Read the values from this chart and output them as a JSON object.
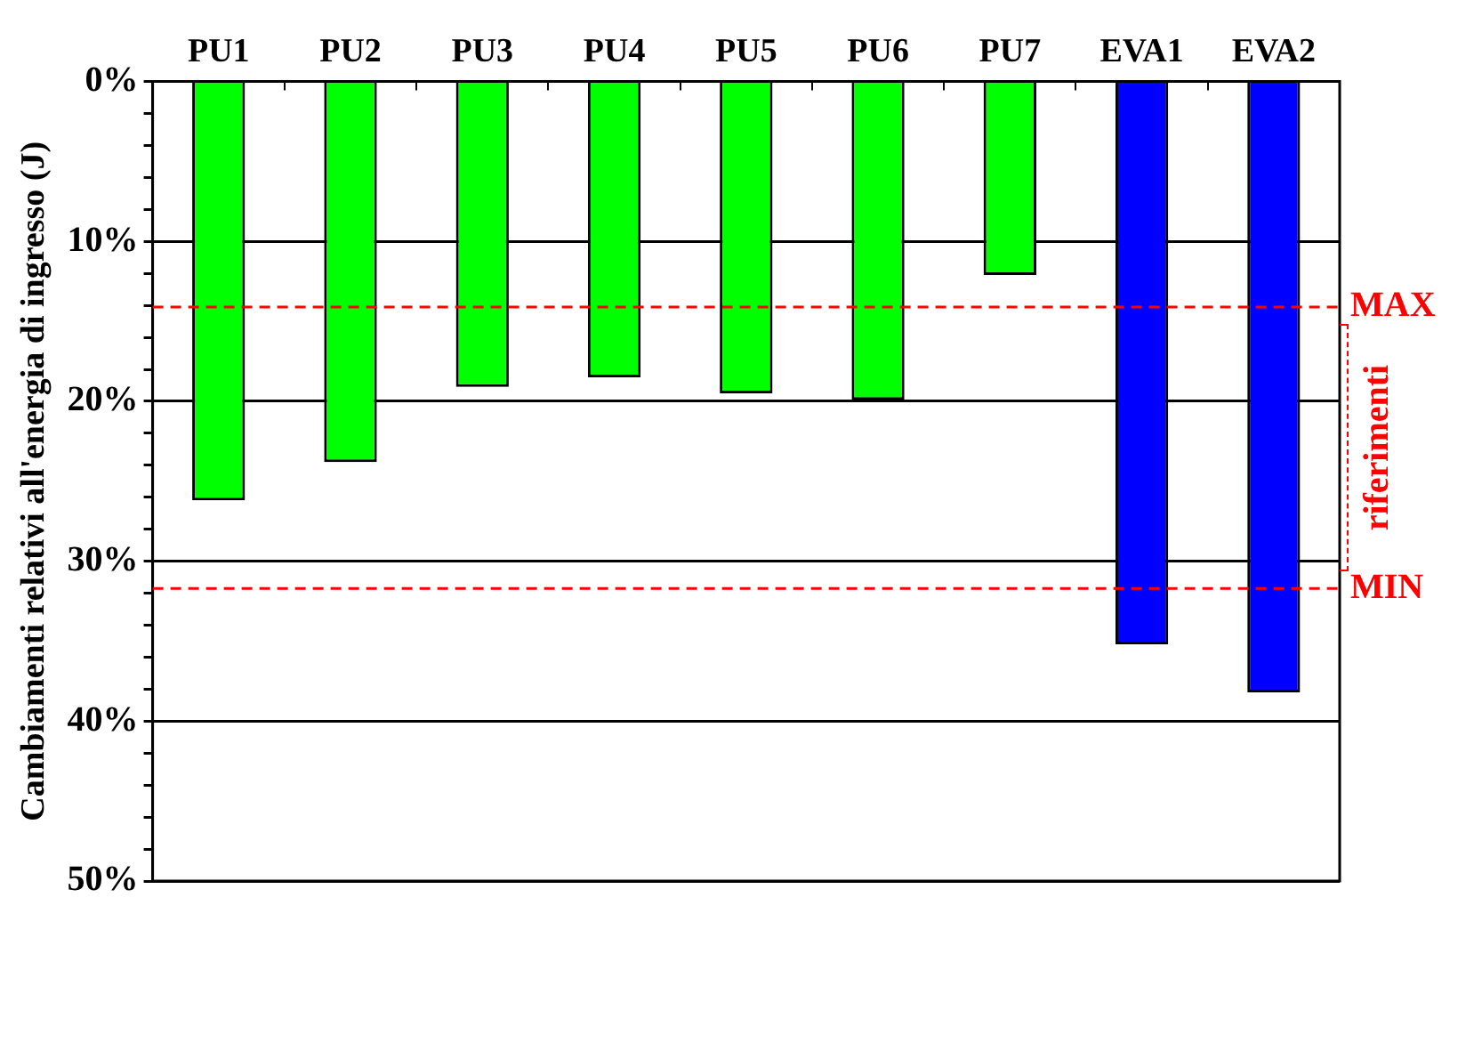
{
  "chart_data": {
    "type": "bar",
    "ylabel": "Cambiamenti relativi all'energia di ingresso (J)",
    "categories": [
      "PU1",
      "PU2",
      "PU3",
      "PU4",
      "PU5",
      "PU6",
      "PU7",
      "EVA1",
      "EVA2"
    ],
    "values": [
      26.2,
      23.8,
      19.1,
      18.5,
      19.5,
      19.9,
      12.1,
      35.2,
      38.2
    ],
    "colors": [
      "#00ff00",
      "#00ff00",
      "#00ff00",
      "#00ff00",
      "#00ff00",
      "#00ff00",
      "#00ff00",
      "#0000ff",
      "#0000ff"
    ],
    "ylim": [
      50,
      0
    ],
    "yticks": [
      {
        "value": 0,
        "label": "0%"
      },
      {
        "value": 2,
        "label": null
      },
      {
        "value": 4,
        "label": null
      },
      {
        "value": 6,
        "label": null
      },
      {
        "value": 8,
        "label": null
      },
      {
        "value": 10,
        "label": "10%"
      },
      {
        "value": 12,
        "label": null
      },
      {
        "value": 14,
        "label": null
      },
      {
        "value": 16,
        "label": null
      },
      {
        "value": 18,
        "label": null
      },
      {
        "value": 20,
        "label": "20%"
      },
      {
        "value": 22,
        "label": null
      },
      {
        "value": 24,
        "label": null
      },
      {
        "value": 26,
        "label": null
      },
      {
        "value": 28,
        "label": null
      },
      {
        "value": 30,
        "label": "30%"
      },
      {
        "value": 32,
        "label": null
      },
      {
        "value": 34,
        "label": null
      },
      {
        "value": 36,
        "label": null
      },
      {
        "value": 38,
        "label": null
      },
      {
        "value": 40,
        "label": "40%"
      },
      {
        "value": 42,
        "label": null
      },
      {
        "value": 44,
        "label": null
      },
      {
        "value": 46,
        "label": null
      },
      {
        "value": 48,
        "label": null
      },
      {
        "value": 50,
        "label": "50%"
      }
    ],
    "grid": "y",
    "legend": false,
    "ref_lines": [
      {
        "axis": "y",
        "value": 14.1,
        "label": "MAX",
        "color": "#ff0000",
        "line_style": "dashed"
      },
      {
        "axis": "y",
        "value": 31.7,
        "label": "MIN",
        "color": "#ff0000",
        "line_style": "dashed"
      }
    ],
    "annotations": [
      "riferimenti"
    ]
  }
}
